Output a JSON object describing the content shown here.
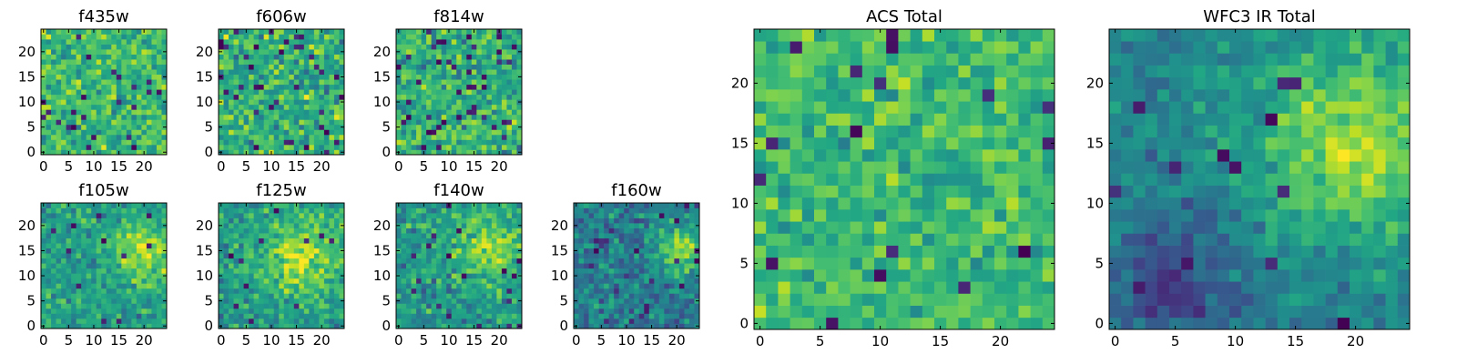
{
  "chart_data": [
    {
      "type": "heatmap",
      "title": "f435w",
      "grid_size": 25,
      "xlim": [
        0,
        25
      ],
      "ylim": [
        0,
        25
      ],
      "xticks": [
        0,
        5,
        10,
        15,
        20
      ],
      "yticks": [
        0,
        5,
        10,
        15,
        20
      ],
      "colormap": "viridis",
      "value_range": [
        0,
        1
      ],
      "character": "mostly uniform yellow-green noise, a few dark pixels",
      "structure": {
        "mean": 0.68,
        "noise": 0.16,
        "dark_fraction": 0.03,
        "blob": null,
        "seed": 11
      }
    },
    {
      "type": "heatmap",
      "title": "f606w",
      "grid_size": 25,
      "xlim": [
        0,
        25
      ],
      "ylim": [
        0,
        25
      ],
      "xticks": [
        0,
        5,
        10,
        15,
        20
      ],
      "yticks": [
        0,
        5,
        10,
        15,
        20
      ],
      "colormap": "viridis",
      "value_range": [
        0,
        1
      ],
      "character": "uniform green noise with scattered dark pixels",
      "structure": {
        "mean": 0.64,
        "noise": 0.18,
        "dark_fraction": 0.05,
        "blob": null,
        "seed": 23
      }
    },
    {
      "type": "heatmap",
      "title": "f814w",
      "grid_size": 25,
      "xlim": [
        0,
        25
      ],
      "ylim": [
        0,
        25
      ],
      "xticks": [
        0,
        5,
        10,
        15,
        20
      ],
      "yticks": [
        0,
        5,
        10,
        15,
        20
      ],
      "colormap": "viridis",
      "value_range": [
        0,
        1
      ],
      "character": "uniform green noise with scattered dark pixels",
      "structure": {
        "mean": 0.64,
        "noise": 0.18,
        "dark_fraction": 0.06,
        "blob": null,
        "seed": 37
      }
    },
    {
      "type": "heatmap",
      "title": "f105w",
      "grid_size": 25,
      "xlim": [
        0,
        25
      ],
      "ylim": [
        0,
        25
      ],
      "xticks": [
        0,
        5,
        10,
        15,
        20
      ],
      "yticks": [
        0,
        5,
        10,
        15,
        20
      ],
      "colormap": "viridis",
      "value_range": [
        0,
        1
      ],
      "character": "smoother structure, brighter region near upper right",
      "structure": {
        "mean": 0.55,
        "noise": 0.14,
        "dark_fraction": 0.02,
        "blob": {
          "cx": 20,
          "cy": 15,
          "r": 6,
          "amp": 0.32
        },
        "seed": 41
      }
    },
    {
      "type": "heatmap",
      "title": "f125w",
      "grid_size": 25,
      "xlim": [
        0,
        25
      ],
      "ylim": [
        0,
        25
      ],
      "xticks": [
        0,
        5,
        10,
        15,
        20
      ],
      "yticks": [
        0,
        5,
        10,
        15,
        20
      ],
      "colormap": "viridis",
      "value_range": [
        0,
        1
      ],
      "character": "bright central-right region",
      "structure": {
        "mean": 0.55,
        "noise": 0.14,
        "dark_fraction": 0.02,
        "blob": {
          "cx": 16,
          "cy": 14,
          "r": 7,
          "amp": 0.32
        },
        "seed": 53
      }
    },
    {
      "type": "heatmap",
      "title": "f140w",
      "grid_size": 25,
      "xlim": [
        0,
        25
      ],
      "ylim": [
        0,
        25
      ],
      "xticks": [
        0,
        5,
        10,
        15,
        20
      ],
      "yticks": [
        0,
        5,
        10,
        15,
        20
      ],
      "colormap": "viridis",
      "value_range": [
        0,
        1
      ],
      "character": "bright region upper right, darker lower left",
      "structure": {
        "mean": 0.52,
        "noise": 0.15,
        "dark_fraction": 0.03,
        "blob": {
          "cx": 18,
          "cy": 16,
          "r": 7,
          "amp": 0.3
        },
        "seed": 67
      }
    },
    {
      "type": "heatmap",
      "title": "f160w",
      "grid_size": 25,
      "xlim": [
        0,
        25
      ],
      "ylim": [
        0,
        25
      ],
      "xticks": [
        0,
        5,
        10,
        15,
        20
      ],
      "yticks": [
        0,
        5,
        10,
        15,
        20
      ],
      "colormap": "viridis",
      "value_range": [
        0,
        1
      ],
      "character": "darker overall, bright spot upper right",
      "structure": {
        "mean": 0.42,
        "noise": 0.15,
        "dark_fraction": 0.04,
        "blob": {
          "cx": 21,
          "cy": 15,
          "r": 4,
          "amp": 0.45
        },
        "seed": 79
      }
    },
    {
      "type": "heatmap",
      "title": "ACS Total",
      "grid_size": 25,
      "xlim": [
        0,
        25
      ],
      "ylim": [
        0,
        25
      ],
      "xticks": [
        0,
        5,
        10,
        15,
        20
      ],
      "yticks": [
        0,
        5,
        10,
        15,
        20
      ],
      "colormap": "viridis",
      "value_range": [
        0,
        1
      ],
      "character": "mostly uniform green-yellow with isolated dark pixels",
      "structure": {
        "mean": 0.68,
        "noise": 0.13,
        "dark_fraction": 0.035,
        "blob": null,
        "seed": 97
      }
    },
    {
      "type": "heatmap",
      "title": "WFC3 IR Total",
      "grid_size": 25,
      "xlim": [
        0,
        25
      ],
      "ylim": [
        0,
        25
      ],
      "xticks": [
        0,
        5,
        10,
        15,
        20
      ],
      "yticks": [
        0,
        5,
        10,
        15,
        20
      ],
      "colormap": "viridis",
      "value_range": [
        0,
        1
      ],
      "character": "smooth; bright yellow region upper right around (21,16), dark blobs lower left",
      "structure": {
        "mean": 0.45,
        "noise": 0.1,
        "dark_fraction": 0.02,
        "blob": {
          "cx": 20,
          "cy": 15,
          "r": 7,
          "amp": 0.42
        },
        "dark_blob": {
          "cx": 5,
          "cy": 3,
          "r": 5,
          "amp": 0.25
        },
        "seed": 113
      }
    }
  ]
}
